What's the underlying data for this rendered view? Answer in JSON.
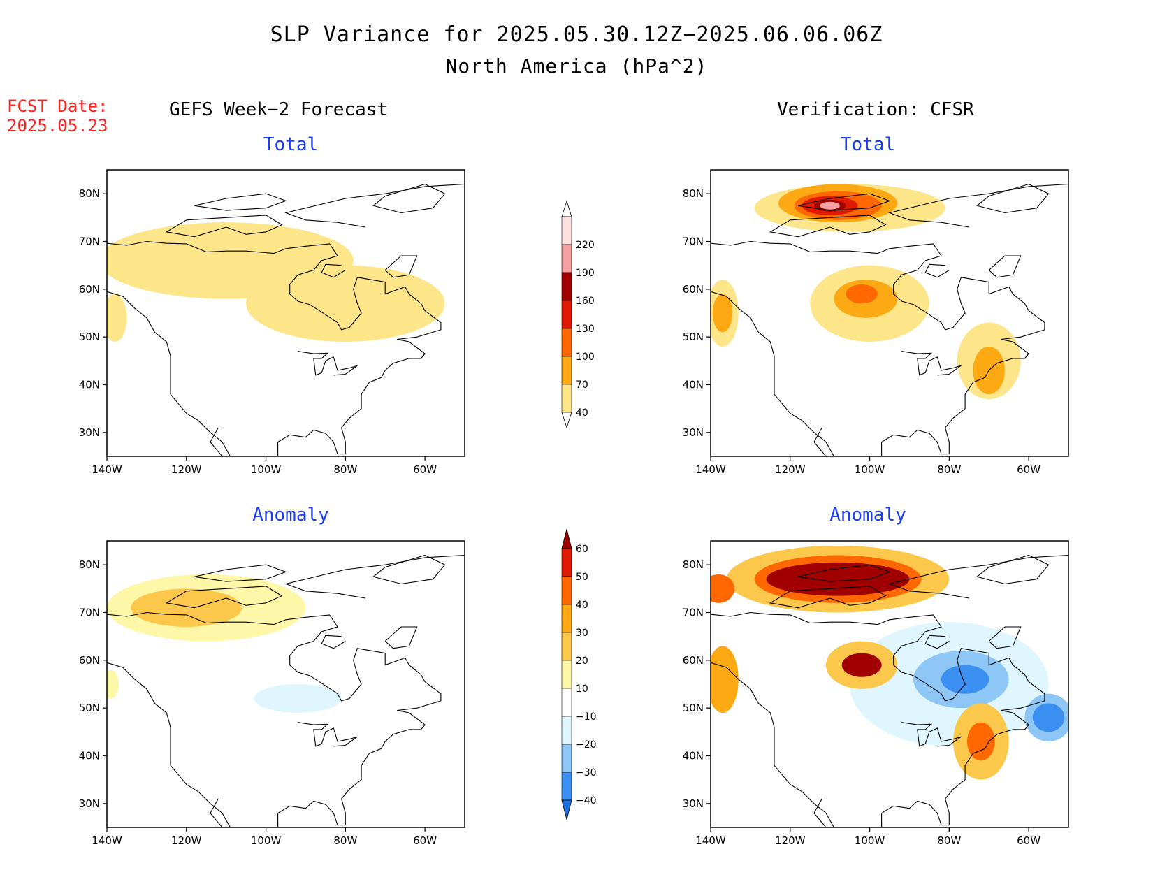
{
  "header": {
    "title": "SLP Variance for 2025.05.30.12Z−2025.06.06.06Z",
    "subtitle": "North America (hPa^2)",
    "fcst_label": "FCST Date:",
    "fcst_date": "2025.05.23"
  },
  "columns": {
    "left": "GEFS Week−2 Forecast",
    "right": "Verification: CFSR"
  },
  "panel_titles": {
    "gefs_total": "Total",
    "cfsr_total": "Total",
    "gefs_anomaly": "Anomaly",
    "cfsr_anomaly": "Anomaly"
  },
  "axes": {
    "lat_ticks": [
      "30N",
      "40N",
      "50N",
      "60N",
      "70N",
      "80N"
    ],
    "lon_ticks": [
      "140W",
      "120W",
      "100W",
      "80W",
      "60W"
    ],
    "lat_range": [
      25,
      85
    ],
    "lon_range": [
      -140,
      -50
    ]
  },
  "colorbars": {
    "total": {
      "levels": [
        "40",
        "70",
        "100",
        "130",
        "160",
        "190",
        "220"
      ],
      "colors": [
        "#ffffff",
        "#fde68a",
        "#fca914",
        "#ff6800",
        "#e01a00",
        "#a10000",
        "#f4a0a0",
        "#fde0e0"
      ]
    },
    "anomaly": {
      "levels": [
        "−40",
        "−30",
        "−20",
        "−10",
        "10",
        "20",
        "30",
        "40",
        "50",
        "60"
      ],
      "colors": [
        "#1a6fe0",
        "#3a8ff0",
        "#8ec6f5",
        "#dff6ff",
        "#ffffff",
        "#fff7a8",
        "#fcc84c",
        "#fca914",
        "#ff6800",
        "#e01a00",
        "#a10000"
      ]
    }
  },
  "chart_data": [
    {
      "type": "heatmap",
      "name": "gefs_total",
      "blobs": [
        {
          "lon": -110,
          "lat": 66,
          "rx": 32,
          "ry": 8,
          "level": 1
        },
        {
          "lon": -80,
          "lat": 57,
          "rx": 25,
          "ry": 8,
          "level": 1
        },
        {
          "lon": -138,
          "lat": 54,
          "rx": 3,
          "ry": 5,
          "level": 1
        }
      ]
    },
    {
      "type": "heatmap",
      "name": "cfsr_total",
      "blobs": [
        {
          "lon": -105,
          "lat": 77,
          "rx": 24,
          "ry": 5,
          "level": 1
        },
        {
          "lon": -108,
          "lat": 78,
          "rx": 15,
          "ry": 4,
          "level": 2
        },
        {
          "lon": -108,
          "lat": 77.5,
          "rx": 11,
          "ry": 3,
          "level": 3
        },
        {
          "lon": -110,
          "lat": 77.5,
          "rx": 7,
          "ry": 2,
          "level": 4
        },
        {
          "lon": -110,
          "lat": 77.5,
          "rx": 4,
          "ry": 1.2,
          "level": 5
        },
        {
          "lon": -110,
          "lat": 77.5,
          "rx": 2.5,
          "ry": 0.8,
          "level": 6
        },
        {
          "lon": -100,
          "lat": 57,
          "rx": 15,
          "ry": 8,
          "level": 1
        },
        {
          "lon": -101,
          "lat": 58,
          "rx": 8,
          "ry": 4,
          "level": 2
        },
        {
          "lon": -102,
          "lat": 59,
          "rx": 4,
          "ry": 2,
          "level": 3
        },
        {
          "lon": -70,
          "lat": 45,
          "rx": 8,
          "ry": 8,
          "level": 1
        },
        {
          "lon": -70,
          "lat": 43,
          "rx": 4,
          "ry": 5,
          "level": 2
        },
        {
          "lon": -137,
          "lat": 55,
          "rx": 4,
          "ry": 7,
          "level": 1
        },
        {
          "lon": -137,
          "lat": 55,
          "rx": 2.5,
          "ry": 4,
          "level": 2
        }
      ]
    },
    {
      "type": "heatmap",
      "name": "gefs_anomaly",
      "blobs": [
        {
          "lon": -115,
          "lat": 71,
          "rx": 25,
          "ry": 7,
          "level": 5
        },
        {
          "lon": -120,
          "lat": 71,
          "rx": 14,
          "ry": 4,
          "level": 6
        },
        {
          "lon": -92,
          "lat": 52,
          "rx": 11,
          "ry": 3,
          "level": 3
        },
        {
          "lon": -139,
          "lat": 55,
          "rx": 2,
          "ry": 3,
          "level": 5
        }
      ]
    },
    {
      "type": "heatmap",
      "name": "cfsr_anomaly",
      "blobs": [
        {
          "lon": -80,
          "lat": 55,
          "rx": 25,
          "ry": 13,
          "level": 3
        },
        {
          "lon": -77,
          "lat": 56,
          "rx": 12,
          "ry": 6,
          "level": 2
        },
        {
          "lon": -76,
          "lat": 56,
          "rx": 6,
          "ry": 3,
          "level": 1
        },
        {
          "lon": -55,
          "lat": 48,
          "rx": 6,
          "ry": 5,
          "level": 2
        },
        {
          "lon": -55,
          "lat": 48,
          "rx": 4,
          "ry": 3,
          "level": 1
        },
        {
          "lon": -108,
          "lat": 77,
          "rx": 28,
          "ry": 7,
          "level": 6
        },
        {
          "lon": -108,
          "lat": 77,
          "rx": 21,
          "ry": 5,
          "level": 8
        },
        {
          "lon": -108,
          "lat": 77,
          "rx": 18,
          "ry": 3.5,
          "level": 10
        },
        {
          "lon": -102,
          "lat": 59,
          "rx": 9,
          "ry": 5,
          "level": 6
        },
        {
          "lon": -102,
          "lat": 59,
          "rx": 5,
          "ry": 2.5,
          "level": 10
        },
        {
          "lon": -72,
          "lat": 43,
          "rx": 7,
          "ry": 8,
          "level": 6
        },
        {
          "lon": -72,
          "lat": 43,
          "rx": 3.5,
          "ry": 4,
          "level": 8
        },
        {
          "lon": -137,
          "lat": 56,
          "rx": 4,
          "ry": 7,
          "level": 7
        },
        {
          "lon": -138,
          "lat": 75,
          "rx": 4,
          "ry": 3,
          "level": 8
        }
      ]
    }
  ]
}
